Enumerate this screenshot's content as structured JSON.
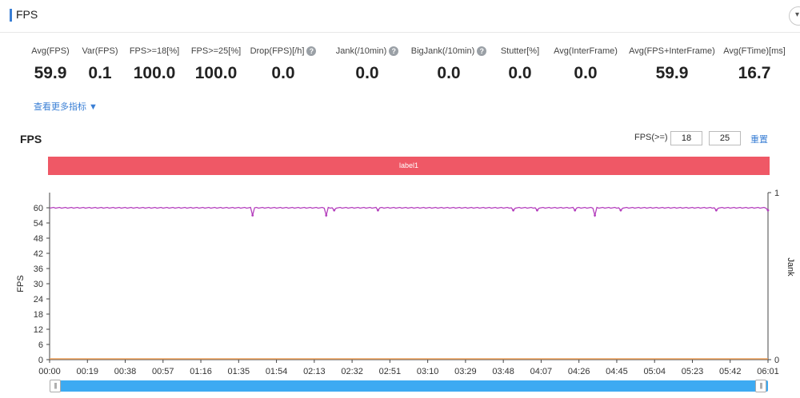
{
  "header": {
    "title": "FPS",
    "collapse_icon": "▾"
  },
  "metrics": [
    {
      "label": "Avg(FPS)",
      "value": "59.9",
      "help": false
    },
    {
      "label": "Var(FPS)",
      "value": "0.1",
      "help": false
    },
    {
      "label": "FPS>=18[%]",
      "value": "100.0",
      "help": false
    },
    {
      "label": "FPS>=25[%]",
      "value": "100.0",
      "help": false
    },
    {
      "label": "Drop(FPS)[/h]",
      "value": "0.0",
      "help": true
    },
    {
      "label": "Jank(/10min)",
      "value": "0.0",
      "help": true
    },
    {
      "label": "BigJank(/10min)",
      "value": "0.0",
      "help": true
    },
    {
      "label": "Stutter[%]",
      "value": "0.0",
      "help": false
    },
    {
      "label": "Avg(InterFrame)",
      "value": "0.0",
      "help": false
    },
    {
      "label": "Avg(FPS+InterFrame)",
      "value": "59.9",
      "help": false
    },
    {
      "label": "Avg(FTime)[ms]",
      "value": "16.7",
      "help": false
    }
  ],
  "more_link": "查看更多指标 ▼",
  "help_icon": "?",
  "chart_panel": {
    "title": "FPS",
    "threshold_label": "FPS(>=)",
    "threshold_1": "18",
    "threshold_2": "25",
    "reset_label": "重置",
    "band_label": "label1"
  },
  "colors": {
    "fps": "#b43fbd",
    "jank": "#f0a35e",
    "band": "#ef5866",
    "accent": "#3a7fd5"
  },
  "chart_data": {
    "type": "line",
    "ylabel": "FPS",
    "y2label": "Jank",
    "ylim": [
      0,
      66
    ],
    "y_ticks": [
      0,
      6,
      12,
      18,
      24,
      30,
      36,
      42,
      48,
      54,
      60
    ],
    "y2_ticks": [
      0,
      1
    ],
    "x_tick_labels": [
      "00:00",
      "00:19",
      "00:38",
      "00:57",
      "01:16",
      "01:35",
      "01:54",
      "02:13",
      "02:32",
      "02:51",
      "03:10",
      "03:29",
      "03:48",
      "04:07",
      "04:26",
      "04:45",
      "05:04",
      "05:23",
      "05:42",
      "06:01"
    ],
    "duration_seconds": 361,
    "series": [
      {
        "name": "FPS",
        "baseline": 60,
        "dips": [
          [
            102,
            57
          ],
          [
            139,
            57
          ],
          [
            143,
            59
          ],
          [
            165,
            59
          ],
          [
            233,
            59
          ],
          [
            245,
            59
          ],
          [
            264,
            59
          ],
          [
            274,
            57
          ],
          [
            287,
            59
          ],
          [
            335,
            59
          ],
          [
            361,
            59
          ]
        ]
      },
      {
        "name": "Jank",
        "constant": 0
      }
    ],
    "grid": false
  }
}
